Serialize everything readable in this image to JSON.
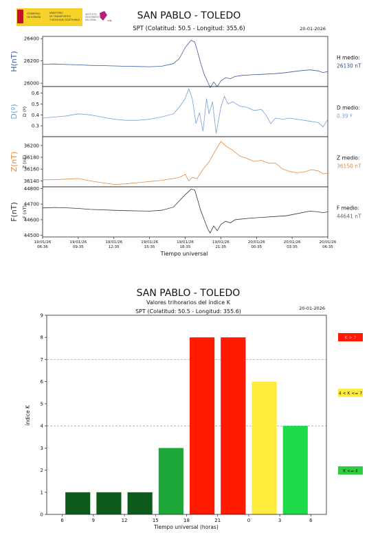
{
  "header": {
    "logo_ministry_lines": [
      "GOBIERNO",
      "DE ESPAÑA",
      "MINISTERIO",
      "DE TRANSPORTES",
      "Y MOVILIDAD SOSTENIBLE"
    ],
    "logo_ign_lines": [
      "INSTITUTO",
      "GEOGRÁFICO",
      "NACIONAL"
    ],
    "logo_cnig": "cnig"
  },
  "chart_data": [
    {
      "type": "line",
      "title": "SAN PABLO - TOLEDO",
      "subtitle": "SPT (Colatitud: 50.5 - Longitud: 355.6)",
      "date": "20-01-2026",
      "xlabel": "Tiempo universal",
      "x_ticks": [
        [
          "19/01/26",
          "06:36"
        ],
        [
          "19/01/26",
          "09:35"
        ],
        [
          "19/01/26",
          "12:35"
        ],
        [
          "19/01/26",
          "15:35"
        ],
        [
          "19/01/26",
          "18:35"
        ],
        [
          "19/01/26",
          "21:35"
        ],
        [
          "20/01/26",
          "00:35"
        ],
        [
          "20/01/26",
          "03:35"
        ],
        [
          "20/01/26",
          "06:35"
        ]
      ],
      "x_range_hours": [
        0,
        24
      ],
      "panels": [
        {
          "label": "H(nT)",
          "axis_label": "",
          "color": "#3a5a9a",
          "ylim": [
            25970,
            26420
          ],
          "yticks": [
            26000,
            26200,
            26400
          ],
          "mean_label": "H medio:",
          "mean_value": "26130 nT",
          "mean_color": "#2a4a8a",
          "series": [
            [
              0,
              26170
            ],
            [
              1,
              26172
            ],
            [
              2,
              26168
            ],
            [
              3,
              26165
            ],
            [
              4,
              26160
            ],
            [
              5,
              26158
            ],
            [
              6,
              26155
            ],
            [
              7,
              26152
            ],
            [
              8,
              26150
            ],
            [
              9,
              26148
            ],
            [
              10,
              26152
            ],
            [
              11,
              26175
            ],
            [
              11.5,
              26220
            ],
            [
              12,
              26320
            ],
            [
              12.5,
              26385
            ],
            [
              12.8,
              26370
            ],
            [
              13,
              26300
            ],
            [
              13.3,
              26180
            ],
            [
              13.6,
              26080
            ],
            [
              13.9,
              26010
            ],
            [
              14.1,
              25960
            ],
            [
              14.4,
              26010
            ],
            [
              14.7,
              25970
            ],
            [
              15,
              26020
            ],
            [
              15.4,
              26050
            ],
            [
              15.8,
              26040
            ],
            [
              16.2,
              26060
            ],
            [
              16.8,
              26070
            ],
            [
              17.5,
              26075
            ],
            [
              18.5,
              26080
            ],
            [
              19.5,
              26085
            ],
            [
              20.5,
              26095
            ],
            [
              21.5,
              26110
            ],
            [
              22.5,
              26120
            ],
            [
              23.2,
              26110
            ],
            [
              23.6,
              26095
            ],
            [
              24,
              26105
            ]
          ]
        },
        {
          "label": "D(º)",
          "axis_label": "D (º)",
          "color": "#6fa0d8",
          "ylim": [
            0.2,
            0.66
          ],
          "yticks": [
            0.3,
            0.4,
            0.5,
            0.6
          ],
          "mean_label": "D medio:",
          "mean_value": "0.39 º",
          "mean_color": "#6fa0d8",
          "series": [
            [
              0,
              0.37
            ],
            [
              1,
              0.38
            ],
            [
              2,
              0.39
            ],
            [
              3,
              0.41
            ],
            [
              4,
              0.4
            ],
            [
              5,
              0.38
            ],
            [
              6,
              0.36
            ],
            [
              7,
              0.35
            ],
            [
              8,
              0.35
            ],
            [
              9,
              0.36
            ],
            [
              10,
              0.38
            ],
            [
              11,
              0.41
            ],
            [
              11.5,
              0.47
            ],
            [
              12,
              0.55
            ],
            [
              12.3,
              0.64
            ],
            [
              12.6,
              0.55
            ],
            [
              12.9,
              0.32
            ],
            [
              13.2,
              0.42
            ],
            [
              13.5,
              0.25
            ],
            [
              13.8,
              0.55
            ],
            [
              14,
              0.41
            ],
            [
              14.3,
              0.52
            ],
            [
              14.6,
              0.23
            ],
            [
              15,
              0.47
            ],
            [
              15.3,
              0.57
            ],
            [
              15.6,
              0.5
            ],
            [
              16,
              0.52
            ],
            [
              16.6,
              0.48
            ],
            [
              17.2,
              0.47
            ],
            [
              17.8,
              0.44
            ],
            [
              18.4,
              0.45
            ],
            [
              18.8,
              0.4
            ],
            [
              19.2,
              0.32
            ],
            [
              19.6,
              0.37
            ],
            [
              20.2,
              0.36
            ],
            [
              20.8,
              0.37
            ],
            [
              21.4,
              0.36
            ],
            [
              22,
              0.35
            ],
            [
              22.6,
              0.34
            ],
            [
              23.2,
              0.33
            ],
            [
              23.6,
              0.29
            ],
            [
              24,
              0.36
            ]
          ]
        },
        {
          "label": "Z(nT)",
          "axis_label": "Z (nT)",
          "color": "#e8883a",
          "ylim": [
            36130,
            36215
          ],
          "yticks": [
            36140,
            36160,
            36180,
            36200
          ],
          "mean_label": "Z medio:",
          "mean_value": "36150 nT",
          "mean_color": "#e8883a",
          "series": [
            [
              0,
              36142
            ],
            [
              1,
              36142
            ],
            [
              2,
              36143
            ],
            [
              3,
              36144
            ],
            [
              4,
              36140
            ],
            [
              5,
              36137
            ],
            [
              6,
              36134
            ],
            [
              7,
              36135
            ],
            [
              8,
              36137
            ],
            [
              9,
              36139
            ],
            [
              10,
              36141
            ],
            [
              11,
              36144
            ],
            [
              11.5,
              36146
            ],
            [
              12,
              36151
            ],
            [
              12.3,
              36140
            ],
            [
              12.6,
              36146
            ],
            [
              13,
              36144
            ],
            [
              13.5,
              36160
            ],
            [
              14,
              36172
            ],
            [
              14.5,
              36190
            ],
            [
              15,
              36207
            ],
            [
              15.5,
              36198
            ],
            [
              16,
              36192
            ],
            [
              16.6,
              36182
            ],
            [
              17.2,
              36178
            ],
            [
              17.8,
              36173
            ],
            [
              18.4,
              36175
            ],
            [
              19,
              36170
            ],
            [
              19.6,
              36170
            ],
            [
              20.2,
              36160
            ],
            [
              20.8,
              36156
            ],
            [
              21.4,
              36154
            ],
            [
              22,
              36155
            ],
            [
              22.6,
              36159
            ],
            [
              23.2,
              36157
            ],
            [
              23.6,
              36152
            ],
            [
              24,
              36153
            ]
          ]
        },
        {
          "label": "F(nT)",
          "axis_label": "F (nT)",
          "color": "#333333",
          "ylim": [
            44490,
            44810
          ],
          "yticks": [
            44500,
            44600,
            44700,
            44800
          ],
          "mean_label": "F medio:",
          "mean_value": "44641 nT",
          "mean_color": "#666666",
          "series": [
            [
              0,
              44675
            ],
            [
              1,
              44678
            ],
            [
              2,
              44676
            ],
            [
              3,
              44672
            ],
            [
              4,
              44666
            ],
            [
              5,
              44663
            ],
            [
              6,
              44660
            ],
            [
              7,
              44658
            ],
            [
              8,
              44656
            ],
            [
              9,
              44655
            ],
            [
              10,
              44660
            ],
            [
              11,
              44680
            ],
            [
              11.5,
              44720
            ],
            [
              12,
              44760
            ],
            [
              12.5,
              44795
            ],
            [
              12.8,
              44790
            ],
            [
              13,
              44740
            ],
            [
              13.3,
              44660
            ],
            [
              13.6,
              44600
            ],
            [
              13.9,
              44540
            ],
            [
              14.1,
              44515
            ],
            [
              14.4,
              44560
            ],
            [
              14.7,
              44530
            ],
            [
              15,
              44570
            ],
            [
              15.4,
              44590
            ],
            [
              15.8,
              44580
            ],
            [
              16.2,
              44600
            ],
            [
              16.8,
              44605
            ],
            [
              17.5,
              44610
            ],
            [
              18.5,
              44615
            ],
            [
              19.5,
              44620
            ],
            [
              20.5,
              44625
            ],
            [
              21.5,
              44640
            ],
            [
              22.5,
              44655
            ],
            [
              23.2,
              44650
            ],
            [
              23.6,
              44645
            ],
            [
              24,
              44650
            ]
          ]
        }
      ]
    },
    {
      "type": "bar",
      "title": "SAN PABLO - TOLEDO",
      "subtitle": "Valores trihorarios del índice K",
      "subtitle2": "SPT (Colatitud: 50.5 - Longitud: 355.6)",
      "date": "20-01-2026",
      "xlabel": "Tiempo universal (horas)",
      "ylabel": "índice K",
      "ylim": [
        0,
        9
      ],
      "yticks": [
        0,
        1,
        2,
        3,
        4,
        5,
        6,
        7,
        8,
        9
      ],
      "xticks": [
        "6",
        "9",
        "12",
        "15",
        "18",
        "21",
        "0",
        "3",
        "6"
      ],
      "grid_dashed_at": [
        4,
        7
      ],
      "values": [
        1,
        1,
        1,
        3,
        8,
        8,
        6,
        4
      ],
      "bar_colors": [
        "#0e5a1a",
        "#0e5a1a",
        "#0e5a1a",
        "#1fa83a",
        "#ff1a00",
        "#ff1a00",
        "#ffeb3b",
        "#1ed94a"
      ],
      "legend": [
        {
          "label": "K > 7",
          "color": "#ff1a00",
          "text_color": "#ffb0a0"
        },
        {
          "label": "4 < K <= 7",
          "color": "#ffeb3b",
          "text_color": "#111111"
        },
        {
          "label": "K <= 4",
          "color": "#2ecc40",
          "text_color": "#111111"
        }
      ]
    }
  ]
}
